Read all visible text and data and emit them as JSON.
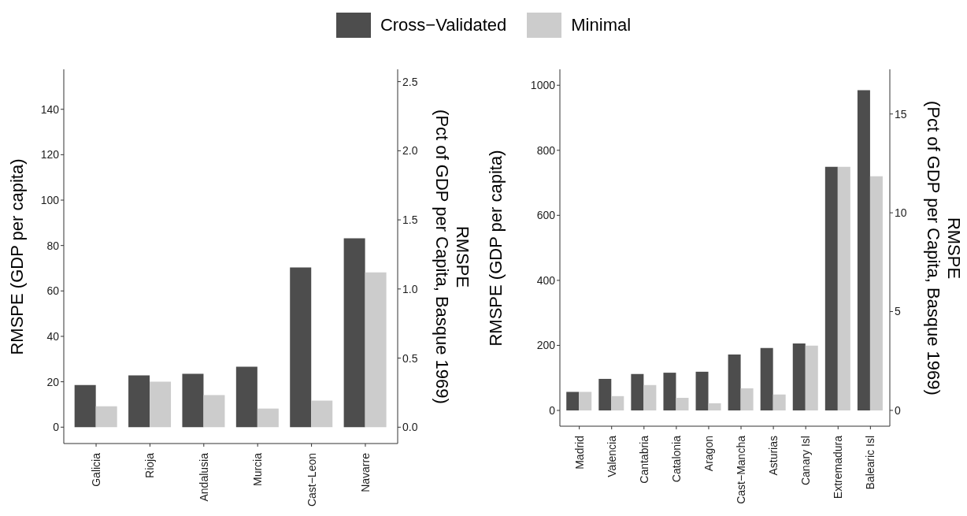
{
  "chart_data": [
    {
      "type": "bar",
      "categories": [
        "Galicia",
        "Rioja",
        "Andalusia",
        "Murcia",
        "Cast−Leon",
        "Navarre"
      ],
      "series": [
        {
          "name": "Cross−Validated",
          "color": "#4d4d4d",
          "values": [
            18.6,
            22.8,
            23.5,
            26.6,
            70.3,
            83.2
          ]
        },
        {
          "name": "Minimal",
          "color": "#cccccc",
          "values": [
            9.2,
            20.0,
            14.1,
            8.2,
            11.7,
            68.2
          ]
        }
      ],
      "ylabel": "RMSPE (GDP per capita)",
      "y2label": "RMSPE\n(Pct of GDP per Capita, Basque 1969)",
      "ylim": [
        -7.2,
        157.6
      ],
      "yticks": [
        0,
        20,
        40,
        60,
        80,
        100,
        120,
        140
      ],
      "y2lim": [
        -0.118,
        2.589
      ],
      "y2ticks": [
        {
          "value": 0,
          "label": "0.0"
        },
        0.5,
        {
          "value": 1,
          "label": "1.0"
        },
        1.5,
        {
          "value": 2,
          "label": "2.0"
        },
        2.5
      ],
      "grid": false,
      "legend": "top"
    },
    {
      "type": "bar",
      "categories": [
        "Madrid",
        "Valencia",
        "Cantabria",
        "Catalonia",
        "Aragon",
        "Cast−Mancha",
        "Asturias",
        "Canary Isl",
        "Extremadura",
        "Balearic Isl"
      ],
      "series": [
        {
          "color": "#4d4d4d",
          "values": [
            57,
            97,
            112,
            116,
            119,
            172,
            192,
            206,
            749,
            985
          ]
        },
        {
          "color": "#cccccc",
          "values": [
            57,
            44,
            78,
            39,
            22,
            68,
            49,
            199,
            749,
            720
          ]
        }
      ],
      "ylabel": "RMSPE (GDP per capita)",
      "y2label": "RMSPE\n(Pct of GDP per Capita, Basque 1969)",
      "ylim": [
        -48.5,
        1049
      ],
      "yticks": [
        0,
        200,
        400,
        600,
        800,
        1000
      ],
      "y2lim": [
        -0.8,
        17.26
      ],
      "y2ticks": [
        0,
        5,
        10,
        15
      ],
      "grid": false
    }
  ]
}
